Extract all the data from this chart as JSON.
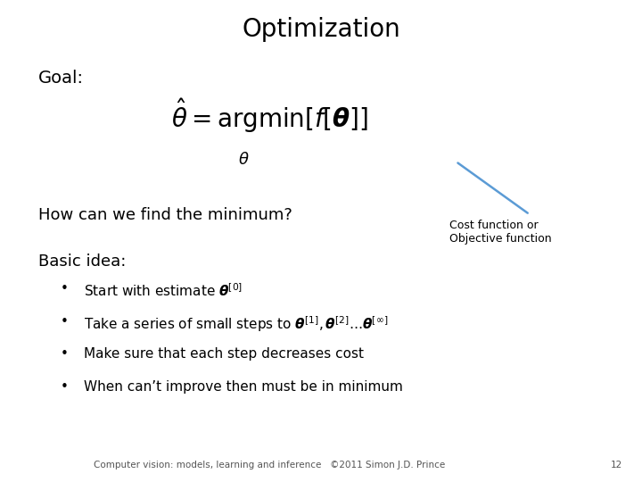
{
  "title": "Optimization",
  "title_fontsize": 20,
  "title_color": "#000000",
  "background_color": "#ffffff",
  "goal_label": "Goal:",
  "goal_fontsize": 14,
  "formula_fontsize": 20,
  "question": "How can we find the minimum?",
  "question_fontsize": 13,
  "annotation_text": "Cost function or\nObjective function",
  "annotation_fontsize": 9,
  "annotation_color": "#000000",
  "arrow_color": "#5b9bd5",
  "basic_idea_label": "Basic idea:",
  "basic_idea_fontsize": 13,
  "bullets": [
    "Start with estimate $\\boldsymbol{\\theta}^{[0]}$",
    "Take a series of small steps to $\\boldsymbol{\\theta}^{[1]}, \\boldsymbol{\\theta}^{[2]} \\ldots\\boldsymbol{\\theta}^{[\\infty]}$",
    "Make sure that each step decreases cost",
    "When can’t improve then must be in minimum"
  ],
  "bullet_fontsize": 11,
  "footer_text": "Computer vision: models, learning and inference   ©2011 Simon J.D. Prince",
  "footer_page": "12",
  "footer_fontsize": 7.5
}
